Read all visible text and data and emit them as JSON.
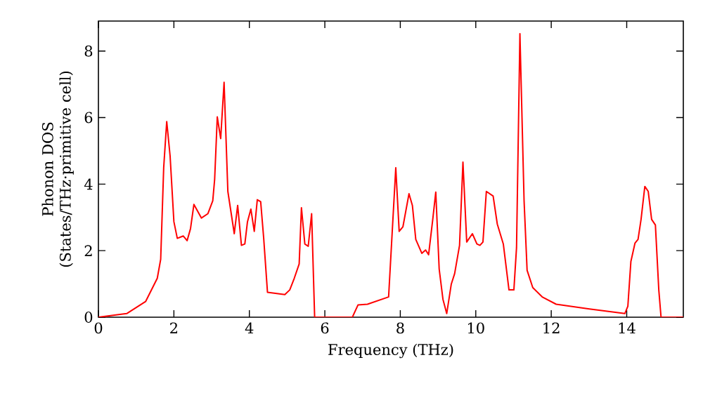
{
  "chart_data": {
    "type": "line",
    "xlabel": "Frequency (THz)",
    "ylabel": "Phonon DOS (States/THz·primitive cell)",
    "xlim": [
      0,
      15.5
    ],
    "ylim": [
      0,
      8.9
    ],
    "xticks": [
      0,
      2,
      4,
      6,
      8,
      10,
      12,
      14
    ],
    "yticks": [
      0,
      2,
      4,
      6,
      8
    ],
    "marker": "none",
    "line_style": "solid",
    "series": [
      {
        "color": "#ff0000",
        "x": [
          0,
          0.75,
          1.25,
          1.56,
          1.65,
          1.73,
          1.81,
          1.9,
          2.0,
          2.09,
          2.25,
          2.35,
          2.44,
          2.53,
          2.73,
          2.9,
          3.03,
          3.08,
          3.15,
          3.24,
          3.33,
          3.43,
          3.6,
          3.69,
          3.79,
          3.88,
          3.95,
          4.04,
          4.13,
          4.21,
          4.3,
          4.38,
          4.48,
          4.94,
          5.07,
          5.19,
          5.32,
          5.38,
          5.47,
          5.56,
          5.65,
          5.73,
          6.73,
          6.88,
          7.13,
          7.69,
          7.88,
          7.97,
          8.07,
          8.23,
          8.32,
          8.41,
          8.57,
          8.67,
          8.75,
          8.86,
          8.94,
          9.03,
          9.13,
          9.23,
          9.35,
          9.44,
          9.57,
          9.66,
          9.76,
          9.91,
          10.03,
          10.11,
          10.19,
          10.28,
          10.46,
          10.57,
          10.73,
          10.88,
          11.01,
          11.08,
          11.17,
          11.28,
          11.36,
          11.51,
          11.76,
          12.13,
          13.01,
          13.95,
          14.03,
          14.11,
          14.22,
          14.3,
          14.38,
          14.48,
          14.57,
          14.66,
          14.76,
          14.85,
          14.91,
          15.5
        ],
        "values": [
          0,
          0.11,
          0.47,
          1.17,
          1.74,
          4.5,
          5.88,
          4.84,
          2.87,
          2.37,
          2.44,
          2.3,
          2.66,
          3.39,
          2.98,
          3.11,
          3.5,
          4.14,
          6.02,
          5.37,
          7.06,
          3.78,
          2.51,
          3.36,
          2.16,
          2.2,
          2.87,
          3.25,
          2.58,
          3.53,
          3.47,
          2.37,
          0.75,
          0.68,
          0.82,
          1.17,
          1.6,
          3.29,
          2.2,
          2.13,
          3.11,
          0,
          0,
          0.37,
          0.39,
          0.61,
          4.49,
          2.58,
          2.72,
          3.71,
          3.36,
          2.34,
          1.92,
          2.02,
          1.88,
          2.94,
          3.76,
          1.45,
          0.54,
          0.11,
          0.99,
          1.31,
          2.16,
          4.66,
          2.26,
          2.51,
          2.2,
          2.16,
          2.26,
          3.78,
          3.64,
          2.8,
          2.2,
          0.82,
          0.82,
          2.09,
          8.52,
          3.5,
          1.41,
          0.89,
          0.61,
          0.39,
          0.25,
          0.11,
          0.33,
          1.67,
          2.23,
          2.34,
          2.94,
          3.93,
          3.78,
          2.94,
          2.77,
          0.82,
          0,
          0
        ]
      }
    ]
  }
}
